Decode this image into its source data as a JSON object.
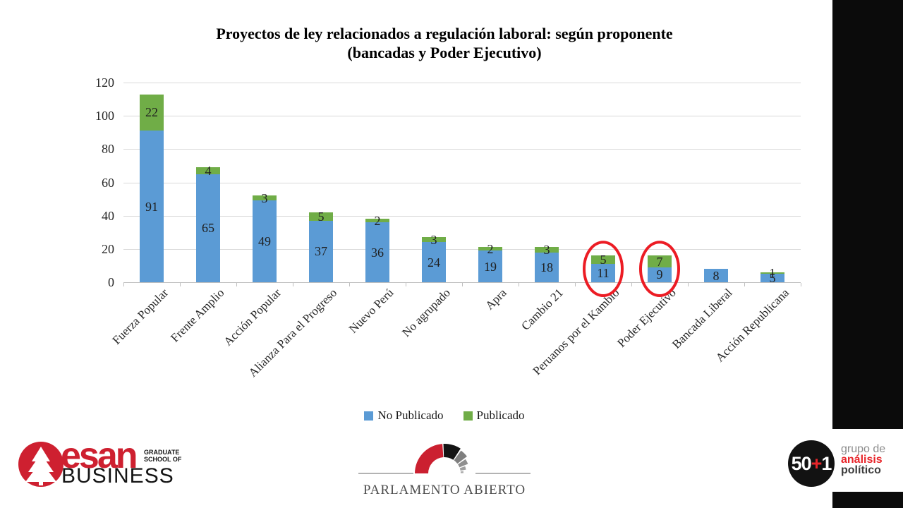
{
  "title": {
    "line1": "Proyectos de ley relacionados a regulación laboral: según proponente",
    "line2": "(bancadas y Poder Ejecutivo)"
  },
  "chart_data": {
    "type": "bar",
    "stacked": true,
    "categories": [
      "Fuerza Popular",
      "Frente Amplio",
      "Acción Popular",
      "Alianza Para el Progreso",
      "Nuevo Perú",
      "No agrupado",
      "Apra",
      "Cambio 21",
      "Peruanos por el Kambio",
      "Poder Ejecutivo",
      "Bancada Liberal",
      "Acción Republicana"
    ],
    "series": [
      {
        "name": "No Publicado",
        "color": "#5b9bd5",
        "values": [
          91,
          65,
          49,
          37,
          36,
          24,
          19,
          18,
          11,
          9,
          8,
          5
        ]
      },
      {
        "name": "Publicado",
        "color": "#70ad47",
        "values": [
          22,
          4,
          3,
          5,
          2,
          3,
          2,
          3,
          5,
          7,
          0,
          1
        ]
      }
    ],
    "totals": [
      113,
      69,
      52,
      42,
      38,
      27,
      21,
      21,
      16,
      16,
      8,
      6
    ],
    "ylim": [
      0,
      120
    ],
    "yticks": [
      0,
      20,
      40,
      60,
      80,
      100,
      120
    ],
    "grid": true,
    "legend_position": "bottom",
    "annotations": {
      "highlighted_categories": [
        "Peruanos por el Kambio",
        "Poder Ejecutivo"
      ],
      "highlight_shape": "red-ellipse",
      "highlight_color": "#ec1c24"
    }
  },
  "legend": {
    "items": [
      {
        "label": "No Publicado",
        "color": "#5b9bd5"
      },
      {
        "label": "Publicado",
        "color": "#70ad47"
      }
    ]
  },
  "footer": {
    "esan": {
      "brand": "esan",
      "sub_line1": "GRADUATE",
      "sub_line2": "SCHOOL OF",
      "word": "BUSINESS",
      "brand_color": "#ce2030"
    },
    "parlamento": {
      "label": "PARLAMENTO ABIERTO"
    },
    "gap": {
      "circle_50": "50",
      "circle_plus": "+",
      "circle_1": "1",
      "line1": "grupo de",
      "line2": "análisis",
      "line3": "político",
      "accent_color": "#e8252a"
    }
  }
}
